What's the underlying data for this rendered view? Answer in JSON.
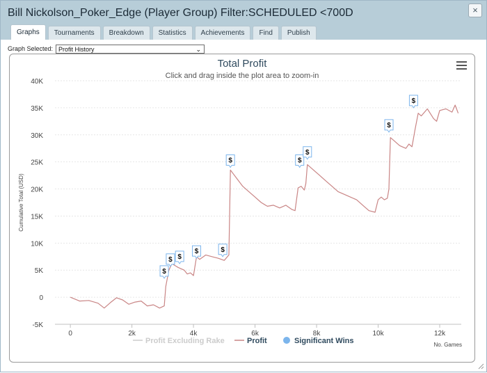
{
  "window": {
    "title": "Bill Nickolson_Poker_Edge (Player Group) Filter:SCHEDULED <700D",
    "close_label": "×"
  },
  "tabs": [
    {
      "label": "Graphs",
      "active": true
    },
    {
      "label": "Tournaments",
      "active": false
    },
    {
      "label": "Breakdown",
      "active": false
    },
    {
      "label": "Statistics",
      "active": false
    },
    {
      "label": "Achievements",
      "active": false
    },
    {
      "label": "Find",
      "active": false
    },
    {
      "label": "Publish",
      "active": false
    }
  ],
  "graph_select": {
    "label": "Graph Selected:",
    "value": "Profit History"
  },
  "menu_icon": "hamburger-menu-icon",
  "chart_data": {
    "type": "line",
    "title": "Total Profit",
    "subtitle": "Click and drag inside the plot area to zoom-in",
    "ylabel": "Cumulative Total (USD)",
    "xlabel": "No. Games",
    "ylim": [
      -5000,
      40000
    ],
    "xlim": [
      -500,
      12700
    ],
    "yticks": [
      -5000,
      0,
      5000,
      10000,
      15000,
      20000,
      25000,
      30000,
      35000,
      40000
    ],
    "ytick_labels": [
      "-5K",
      "0",
      "5K",
      "10K",
      "15K",
      "20K",
      "25K",
      "30K",
      "35K",
      "40K"
    ],
    "xticks": [
      0,
      2000,
      4000,
      6000,
      8000,
      10000,
      12000
    ],
    "xtick_labels": [
      "0",
      "2k",
      "4k",
      "6k",
      "8k",
      "10k",
      "12k"
    ],
    "grid": true,
    "legend_position": "bottom",
    "legend": [
      {
        "name": "Profit Excluding Rake",
        "color": "#cccccc",
        "marker": "line",
        "hidden": true
      },
      {
        "name": "Profit",
        "color": "#c98585",
        "marker": "line",
        "hidden": false
      },
      {
        "name": "Significant Wins",
        "color": "#7cb5ec",
        "marker": "circle",
        "hidden": false
      }
    ],
    "series": [
      {
        "name": "Profit",
        "color": "#c98585",
        "x": [
          0,
          300,
          600,
          900,
          1100,
          1300,
          1500,
          1700,
          1900,
          2100,
          2300,
          2500,
          2700,
          2900,
          3050,
          3100,
          3200,
          3300,
          3500,
          3700,
          3800,
          3900,
          4000,
          4100,
          4200,
          4400,
          4600,
          4800,
          5000,
          5150,
          5200,
          5400,
          5600,
          5800,
          6000,
          6200,
          6400,
          6600,
          6800,
          7000,
          7200,
          7300,
          7400,
          7500,
          7600,
          7650,
          7700,
          7900,
          8100,
          8300,
          8500,
          8700,
          8900,
          9100,
          9300,
          9500,
          9700,
          9900,
          10000,
          10100,
          10200,
          10300,
          10350,
          10400,
          10500,
          10700,
          10900,
          11000,
          11100,
          11200,
          11300,
          11400,
          11600,
          11800,
          11900,
          12000,
          12200,
          12400,
          12500,
          12600
        ],
        "values": [
          0,
          -700,
          -600,
          -1100,
          -2000,
          -1000,
          -100,
          -500,
          -1300,
          -900,
          -700,
          -1600,
          -1400,
          -2000,
          -1600,
          2000,
          5000,
          6200,
          5500,
          5000,
          4300,
          4500,
          4000,
          7500,
          7000,
          7800,
          7500,
          7200,
          6800,
          7800,
          23500,
          22000,
          20500,
          19500,
          18500,
          17500,
          16800,
          17000,
          16500,
          17000,
          16200,
          16000,
          20200,
          20500,
          19800,
          21000,
          24500,
          23500,
          22500,
          21500,
          20500,
          19500,
          19000,
          18500,
          18000,
          17000,
          16000,
          15700,
          18000,
          18500,
          18000,
          18300,
          20000,
          29500,
          29000,
          28000,
          27500,
          28300,
          27800,
          31000,
          34000,
          33500,
          34800,
          33000,
          32500,
          34500,
          34800,
          34200,
          35500,
          34000
        ]
      }
    ],
    "significant_wins": [
      {
        "x": 3050,
        "y": 3500,
        "label": "$"
      },
      {
        "x": 3250,
        "y": 5700,
        "label": "$"
      },
      {
        "x": 3550,
        "y": 6200,
        "label": "$"
      },
      {
        "x": 4100,
        "y": 7200,
        "label": "$"
      },
      {
        "x": 4950,
        "y": 7500,
        "label": "$"
      },
      {
        "x": 5200,
        "y": 24000,
        "label": "$"
      },
      {
        "x": 7450,
        "y": 24000,
        "label": "$"
      },
      {
        "x": 7700,
        "y": 25500,
        "label": "$"
      },
      {
        "x": 10350,
        "y": 30500,
        "label": "$"
      },
      {
        "x": 11150,
        "y": 35000,
        "label": "$"
      }
    ]
  }
}
